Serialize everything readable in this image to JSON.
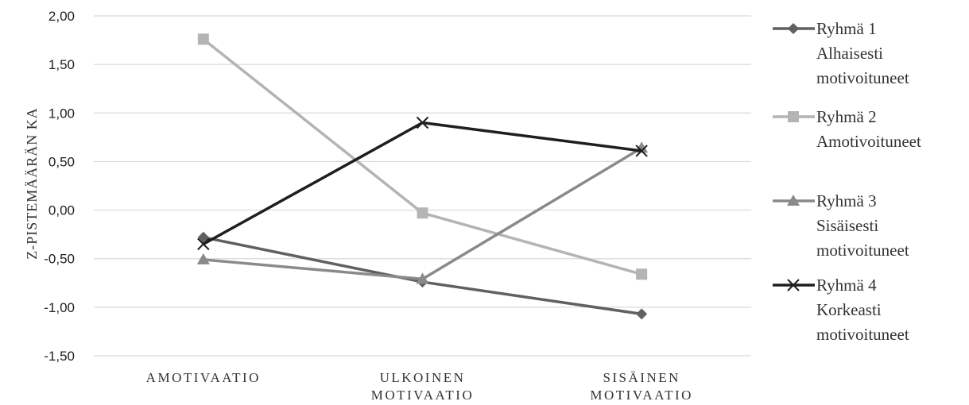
{
  "chart_data": {
    "type": "line",
    "title": "",
    "xlabel": "",
    "ylabel": "Z-PISTEMÄÄRÄN KA",
    "ylim": [
      -1.5,
      2.0
    ],
    "y_ticks": [
      "2,00",
      "1,50",
      "1,00",
      "0,50",
      "0,00",
      "-0,50",
      "-1,00",
      "-1,50"
    ],
    "y_tick_values": [
      2.0,
      1.5,
      1.0,
      0.5,
      0.0,
      -0.5,
      -1.0,
      -1.5
    ],
    "categories": [
      [
        "AMOTIVAATIO"
      ],
      [
        "ULKOINEN",
        "MOTIVAATIO"
      ],
      [
        "SISÄINEN",
        "MOTIVAATIO"
      ]
    ],
    "grid": true,
    "legend_position": "right",
    "series": [
      {
        "name": [
          "Ryhmä 1",
          "Alhaisesti",
          "motivoituneet"
        ],
        "values": [
          -0.28,
          -0.74,
          -1.07
        ],
        "color": "#606060",
        "marker": "diamond"
      },
      {
        "name": [
          "Ryhmä 2",
          "Amotivoituneet"
        ],
        "values": [
          1.76,
          -0.03,
          -0.66
        ],
        "color": "#b4b4b4",
        "marker": "square"
      },
      {
        "name": [
          "Ryhmä 3",
          "Sisäisesti",
          "motivoituneet"
        ],
        "values": [
          -0.51,
          -0.71,
          0.64
        ],
        "color": "#8a8a8a",
        "marker": "triangle"
      },
      {
        "name": [
          "Ryhmä 4",
          "Korkeasti",
          "motivoituneet"
        ],
        "values": [
          -0.35,
          0.9,
          0.61
        ],
        "color": "#1e1e1e",
        "marker": "cross"
      }
    ]
  }
}
